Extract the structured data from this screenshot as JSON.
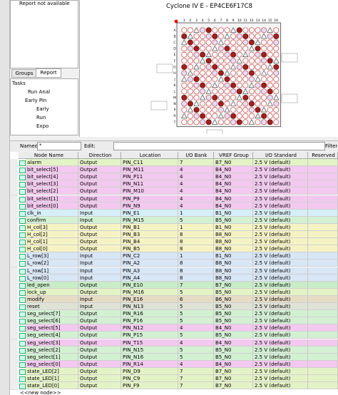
{
  "report": {
    "message": "Report not available",
    "tabs": [
      "Groups",
      "Report"
    ]
  },
  "tasks": {
    "title": "Tasks",
    "items": [
      "Run Anal",
      "Early Pin",
      "Early",
      "Run",
      "Expo"
    ]
  },
  "package": {
    "title": "Cyclone IV E - EP4CE6F17C8",
    "rows": [
      "A",
      "B",
      "C",
      "D",
      "E",
      "F",
      "G",
      "H",
      "J",
      "K",
      "L",
      "M",
      "N",
      "P",
      "R",
      "T"
    ],
    "columns": [
      "1",
      "2",
      "3",
      "4",
      "5",
      "6",
      "7",
      "8",
      "9",
      "10",
      "11",
      "12",
      "13",
      "14",
      "15",
      "16"
    ]
  },
  "filter": {
    "named_label": "Named:",
    "named_value": "*",
    "edit_label": "Edit:",
    "filter_label": "Filter"
  },
  "table": {
    "columns": [
      "Node Name",
      "Direction",
      "Location",
      "I/O Bank",
      "VREF Group",
      "I/O Standard",
      "Reserved"
    ],
    "rows": [
      {
        "cells": [
          "alarm",
          "Output",
          "PIN_C11",
          "7",
          "B7_N0",
          "2.5 V (default)"
        ],
        "color": "#e4f3c6"
      },
      {
        "cells": [
          "bit_select[5]",
          "Output",
          "PIN_M11",
          "4",
          "B4_N0",
          "2.5 V (default)"
        ],
        "color": "#f3c9ef"
      },
      {
        "cells": [
          "bit_select[4]",
          "Output",
          "PIN_P11",
          "4",
          "B4_N0",
          "2.5 V (default)"
        ],
        "color": "#f3c9ef"
      },
      {
        "cells": [
          "bit_select[3]",
          "Output",
          "PIN_N11",
          "4",
          "B4_N0",
          "2.5 V (default)"
        ],
        "color": "#f3c9ef"
      },
      {
        "cells": [
          "bit_select[2]",
          "Output",
          "PIN_M10",
          "4",
          "B4_N0",
          "2.5 V (default)"
        ],
        "color": "#f3c9ef"
      },
      {
        "cells": [
          "bit_select[1]",
          "Output",
          "PIN_P9",
          "4",
          "B4_N0",
          "2.5 V (default)"
        ],
        "color": "#f3c9ef"
      },
      {
        "cells": [
          "bit_select[0]",
          "Output",
          "PIN_N9",
          "4",
          "B4_N0",
          "2.5 V (default)"
        ],
        "color": "#f3c9ef"
      },
      {
        "cells": [
          "clk_in",
          "Input",
          "PIN_E1",
          "1",
          "B1_N0",
          "2.5 V (default)"
        ],
        "color": "#d6eef7"
      },
      {
        "cells": [
          "confirm",
          "Input",
          "PIN_M15",
          "5",
          "B5_N0",
          "2.5 V (default)"
        ],
        "color": "#d3f0d3"
      },
      {
        "cells": [
          "H_col[3]",
          "Output",
          "PIN_B1",
          "1",
          "B1_N0",
          "2.5 V (default)"
        ],
        "color": "#f5f3c4"
      },
      {
        "cells": [
          "H_col[2]",
          "Output",
          "PIN_B3",
          "8",
          "B8_N0",
          "2.5 V (default)"
        ],
        "color": "#f5f3c4"
      },
      {
        "cells": [
          "H_col[1]",
          "Output",
          "PIN_B4",
          "8",
          "B8_N0",
          "2.5 V (default)"
        ],
        "color": "#f5f3c4"
      },
      {
        "cells": [
          "H_col[0]",
          "Output",
          "PIN_B5",
          "8",
          "B8_N0",
          "2.5 V (default)"
        ],
        "color": "#f5f3c4"
      },
      {
        "cells": [
          "L_row[3]",
          "Input",
          "PIN_C2",
          "1",
          "B1_N0",
          "2.5 V (default)"
        ],
        "color": "#d8e6f6"
      },
      {
        "cells": [
          "L_row[2]",
          "Input",
          "PIN_A2",
          "8",
          "B8_N0",
          "2.5 V (default)"
        ],
        "color": "#d8e6f6"
      },
      {
        "cells": [
          "L_row[1]",
          "Input",
          "PIN_A3",
          "8",
          "B8_N0",
          "2.5 V (default)"
        ],
        "color": "#d8e6f6"
      },
      {
        "cells": [
          "L_row[0]",
          "Input",
          "PIN_A4",
          "8",
          "B8_N0",
          "2.5 V (default)"
        ],
        "color": "#d8e6f6"
      },
      {
        "cells": [
          "led_open",
          "Output",
          "PIN_E10",
          "7",
          "B7_N0",
          "2.5 V (default)"
        ],
        "color": "#c9ecc9"
      },
      {
        "cells": [
          "lock_up",
          "Output",
          "PIN_M16",
          "5",
          "B5_N0",
          "2.5 V (default)"
        ],
        "color": "#e4f3c6"
      },
      {
        "cells": [
          "modify",
          "Input",
          "PIN_E16",
          "6",
          "B6_N0",
          "2.5 V (default)"
        ],
        "color": "#e6dcc6"
      },
      {
        "cells": [
          "reset",
          "Input",
          "PIN_N13",
          "5",
          "B5_N0",
          "2.5 V (default)"
        ],
        "color": "#dfe3d6"
      },
      {
        "cells": [
          "seg_select[7]",
          "Output",
          "PIN_R16",
          "5",
          "B5_N0",
          "2.5 V (default)"
        ],
        "color": "#d3f0d3"
      },
      {
        "cells": [
          "seg_select[6]",
          "Output",
          "PIN_P16",
          "5",
          "B5_N0",
          "2.5 V (default)"
        ],
        "color": "#d3f0d3"
      },
      {
        "cells": [
          "seg_select[5]",
          "Output",
          "PIN_N12",
          "4",
          "B4_N0",
          "2.5 V (default)"
        ],
        "color": "#f3c9ef"
      },
      {
        "cells": [
          "seg_select[4]",
          "Output",
          "PIN_P15",
          "5",
          "B5_N0",
          "2.5 V (default)"
        ],
        "color": "#d3f0d3"
      },
      {
        "cells": [
          "seg_select[3]",
          "Output",
          "PIN_T15",
          "4",
          "B4_N0",
          "2.5 V (default)"
        ],
        "color": "#f3c9ef"
      },
      {
        "cells": [
          "seg_select[2]",
          "Output",
          "PIN_N15",
          "5",
          "B5_N0",
          "2.5 V (default)"
        ],
        "color": "#d3f0d3"
      },
      {
        "cells": [
          "seg_select[1]",
          "Output",
          "PIN_N16",
          "5",
          "B5_N0",
          "2.5 V (default)"
        ],
        "color": "#d3f0d3"
      },
      {
        "cells": [
          "seg_select[0]",
          "Output",
          "PIN_R14",
          "4",
          "B4_N0",
          "2.5 V (default)"
        ],
        "color": "#f3c9ef"
      },
      {
        "cells": [
          "state_LED[2]",
          "Output",
          "PIN_D9",
          "7",
          "B7_N0",
          "2.5 V (default)"
        ],
        "color": "#e4f3c6"
      },
      {
        "cells": [
          "state_LED[1]",
          "Output",
          "PIN_C9",
          "7",
          "B7_N0",
          "2.5 V (default)"
        ],
        "color": "#e4f3c6"
      },
      {
        "cells": [
          "state_LED[0]",
          "Output",
          "PIN_F9",
          "7",
          "B7_N0",
          "2.5 V (default)"
        ],
        "color": "#e4f3c6"
      }
    ],
    "new_node": "<<new node>>"
  }
}
